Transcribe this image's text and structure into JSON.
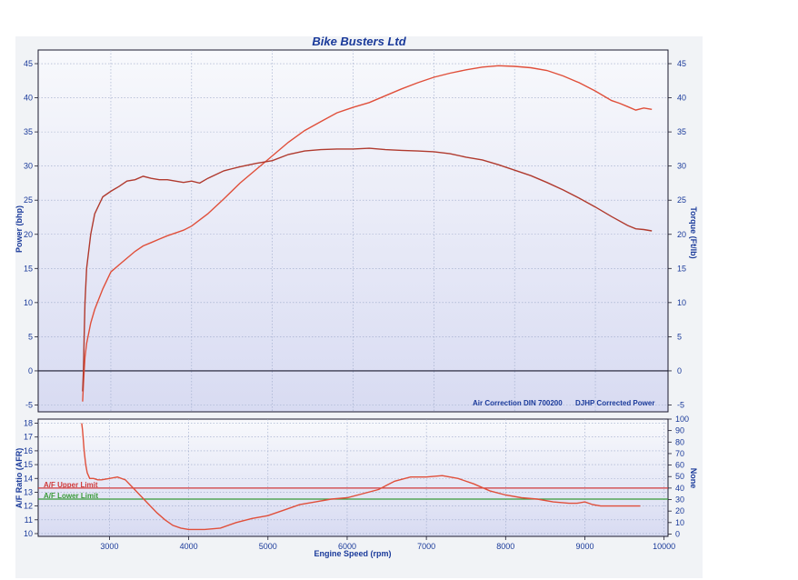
{
  "chart_data": [
    {
      "type": "line",
      "title": "Bike Busters Ltd",
      "xlabel": "Engine Speed (rpm)",
      "ylabel": "Power (bhp)",
      "y2label": "Torque (Ft/lb)",
      "xlim": [
        2100,
        9900
      ],
      "ylim": [
        -6,
        47
      ],
      "y2lim": [
        -6,
        47
      ],
      "yticks": [
        -5,
        0,
        5,
        10,
        15,
        20,
        25,
        30,
        35,
        40,
        45
      ],
      "y2ticks": [
        -5,
        0,
        5,
        10,
        15,
        20,
        25,
        30,
        35,
        40,
        45
      ],
      "grid": true,
      "annotations": [
        "Air Correction DIN 700200",
        "DJHP Corrected Power"
      ],
      "colors": {
        "power": "#e04f3a",
        "torque": "#b03a2e",
        "zero_line": "#1a1a2e",
        "grid": "#9aa7c8",
        "axis_text": "#1a3a9a",
        "plot_bg_top": "#f8f9fc",
        "plot_bg_bottom": "#d8dbf2"
      },
      "series": [
        {
          "key": "power",
          "x": [
            2650,
            2660,
            2670,
            2680,
            2700,
            2750,
            2800,
            2900,
            3000,
            3100,
            3200,
            3300,
            3400,
            3500,
            3600,
            3700,
            3800,
            3900,
            4000,
            4200,
            4400,
            4600,
            4800,
            5000,
            5200,
            5400,
            5600,
            5800,
            6000,
            6200,
            6400,
            6600,
            6800,
            7000,
            7200,
            7400,
            7600,
            7800,
            8000,
            8200,
            8400,
            8600,
            8800,
            9000,
            9200,
            9300,
            9400,
            9500,
            9600,
            9700
          ],
          "values": [
            -4.5,
            -2,
            0,
            2,
            4,
            7,
            9,
            12,
            14.5,
            15.5,
            16.5,
            17.5,
            18.3,
            18.8,
            19.3,
            19.8,
            20.2,
            20.6,
            21.2,
            23,
            25.2,
            27.5,
            29.5,
            31.5,
            33.5,
            35.2,
            36.5,
            37.8,
            38.6,
            39.3,
            40.3,
            41.3,
            42.2,
            43,
            43.6,
            44.1,
            44.5,
            44.7,
            44.6,
            44.4,
            44,
            43.2,
            42.2,
            41,
            39.6,
            39.2,
            38.7,
            38.2,
            38.5,
            38.3
          ]
        },
        {
          "key": "torque",
          "x": [
            2650,
            2660,
            2670,
            2680,
            2700,
            2750,
            2800,
            2900,
            3000,
            3100,
            3200,
            3300,
            3400,
            3500,
            3600,
            3700,
            3800,
            3900,
            4000,
            4100,
            4200,
            4400,
            4600,
            4800,
            5000,
            5200,
            5400,
            5600,
            5800,
            6000,
            6200,
            6400,
            6600,
            6800,
            7000,
            7200,
            7400,
            7600,
            7800,
            8000,
            8200,
            8400,
            8600,
            8800,
            9000,
            9200,
            9400,
            9500,
            9600,
            9700
          ],
          "values": [
            -3,
            0,
            5,
            10,
            15,
            20,
            23,
            25.5,
            26.3,
            27,
            27.8,
            28,
            28.5,
            28.2,
            28,
            28,
            27.8,
            27.6,
            27.8,
            27.5,
            28.2,
            29.3,
            29.9,
            30.4,
            30.8,
            31.7,
            32.2,
            32.4,
            32.5,
            32.5,
            32.6,
            32.4,
            32.3,
            32.2,
            32.1,
            31.8,
            31.3,
            30.9,
            30.2,
            29.4,
            28.6,
            27.6,
            26.5,
            25.3,
            24,
            22.6,
            21.3,
            20.8,
            20.7,
            20.5
          ]
        }
      ]
    },
    {
      "type": "line",
      "xlabel": "Engine Speed (rpm)",
      "ylabel": "A/F Ratio (AFR)",
      "y2label": "None",
      "xlim": [
        2100,
        10050
      ],
      "ylim": [
        9.8,
        18.3
      ],
      "y2lim": [
        -2,
        100
      ],
      "xticks": [
        3000,
        4000,
        5000,
        6000,
        7000,
        8000,
        9000,
        10000
      ],
      "yticks": [
        10,
        11,
        12,
        13,
        14,
        15,
        16,
        17,
        18
      ],
      "y2ticks": [
        0,
        10,
        20,
        30,
        40,
        50,
        60,
        70,
        80,
        90,
        100
      ],
      "grid": true,
      "colors": {
        "afr": "#e04f3a",
        "upper_limit": "#d03a3a",
        "lower_limit": "#3a9a3a"
      },
      "limits": [
        {
          "key": "upper",
          "label": "A/F Upper Limit",
          "value": 13.3
        },
        {
          "key": "lower",
          "label": "A/F Lower Limit",
          "value": 12.5
        }
      ],
      "series": [
        {
          "key": "afr",
          "x": [
            2650,
            2660,
            2680,
            2700,
            2720,
            2750,
            2800,
            2850,
            2900,
            3000,
            3100,
            3200,
            3300,
            3400,
            3500,
            3600,
            3700,
            3800,
            3900,
            4000,
            4200,
            4400,
            4600,
            4800,
            5000,
            5200,
            5400,
            5600,
            5800,
            6000,
            6200,
            6400,
            6500,
            6600,
            6800,
            7000,
            7200,
            7400,
            7600,
            7800,
            8000,
            8200,
            8400,
            8600,
            8800,
            8900,
            9000,
            9100,
            9200,
            9400,
            9600,
            9700
          ],
          "values": [
            18,
            17.5,
            16,
            15,
            14.4,
            14,
            14,
            13.9,
            13.9,
            14,
            14.1,
            13.9,
            13.3,
            12.7,
            12.1,
            11.5,
            11,
            10.6,
            10.4,
            10.3,
            10.3,
            10.4,
            10.8,
            11.1,
            11.3,
            11.7,
            12.1,
            12.3,
            12.5,
            12.6,
            12.9,
            13.2,
            13.5,
            13.8,
            14.1,
            14.1,
            14.2,
            14,
            13.6,
            13.1,
            12.8,
            12.6,
            12.5,
            12.3,
            12.2,
            12.2,
            12.3,
            12.1,
            12,
            12,
            12,
            12
          ]
        }
      ]
    }
  ]
}
